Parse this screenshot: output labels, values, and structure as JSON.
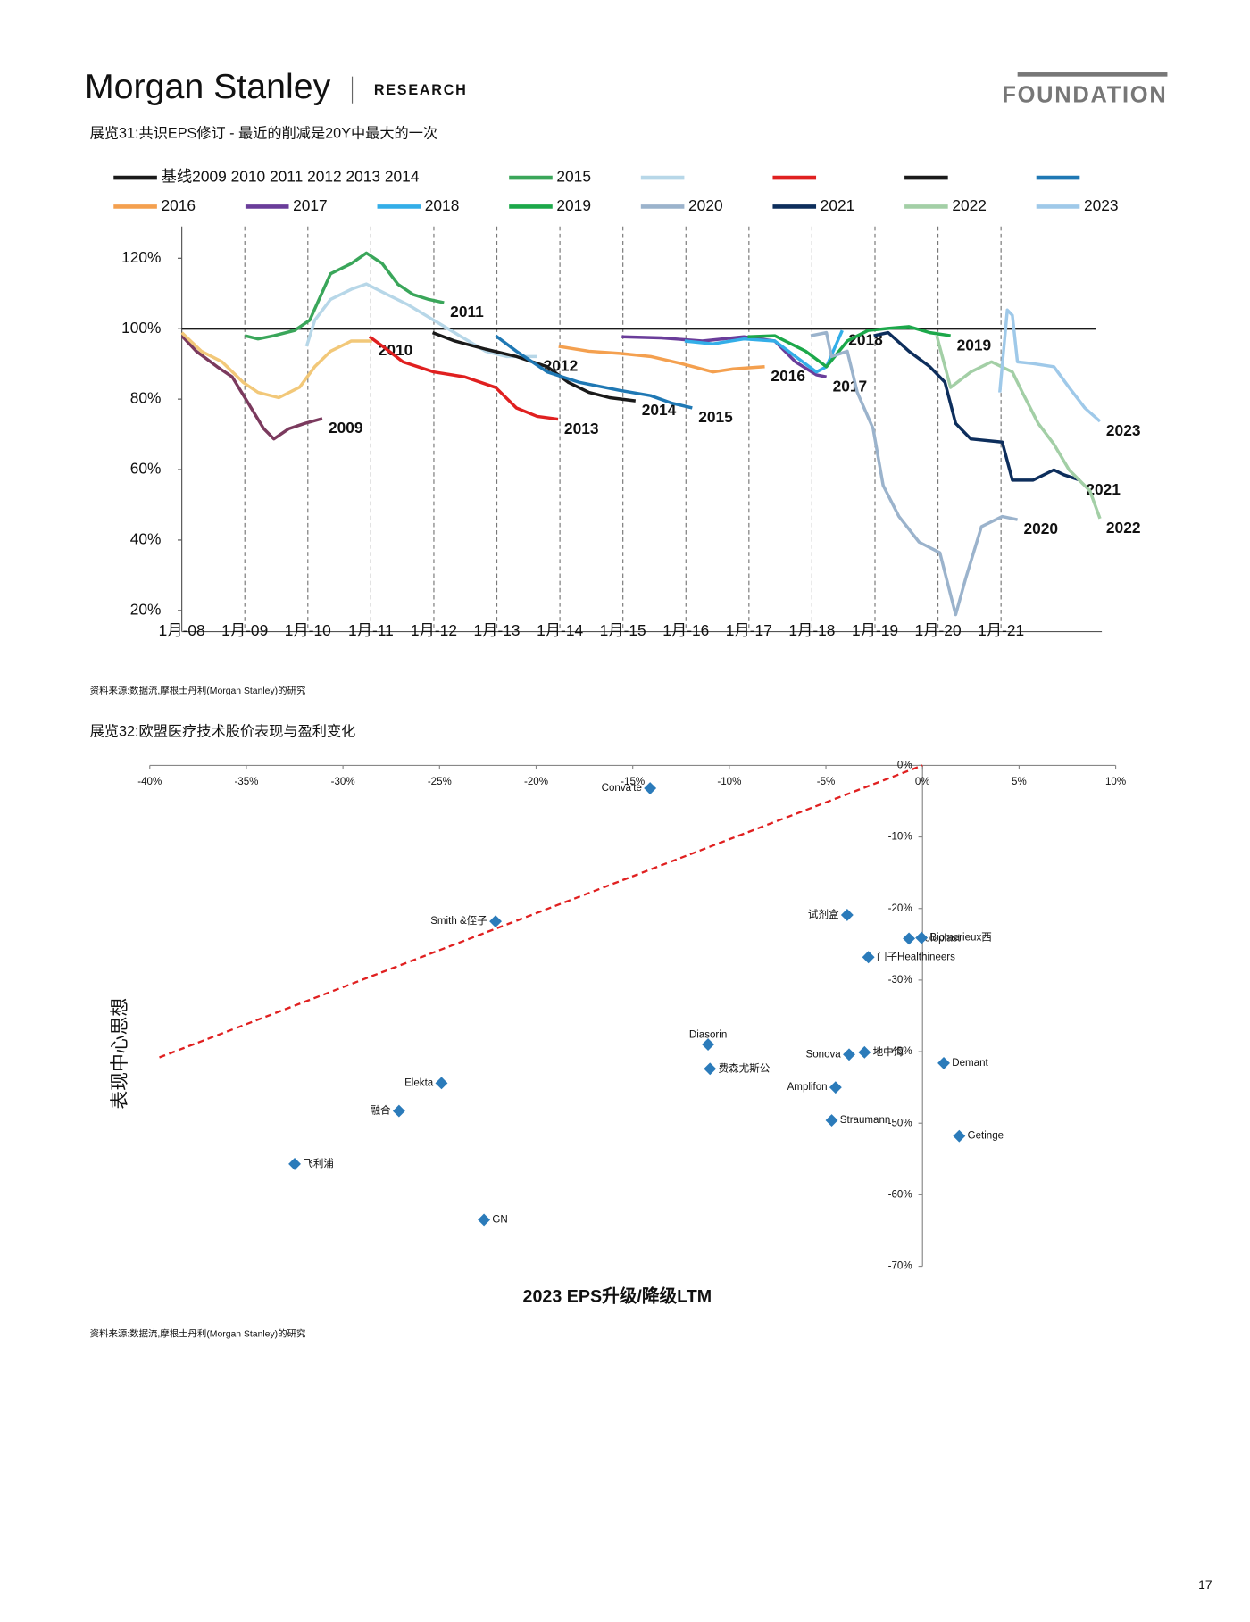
{
  "header": {
    "brand": "Morgan Stanley",
    "division": "RESEARCH",
    "series": "FOUNDATION"
  },
  "chart_data": [
    {
      "type": "line",
      "title": "展览31:共识EPS修订 - 最近的削减是20Y中最大的一次",
      "legend": [
        {
          "label": "基线2009 2010 2011 2012 2013 2014",
          "color": "#1a1a1a"
        },
        {
          "label": "2015",
          "color": "#3aa65a"
        },
        {
          "label": null,
          "color": "#b7d7e8"
        },
        {
          "label": null,
          "color": "#e02020"
        },
        {
          "label": null,
          "color": "#1a1a1a"
        },
        {
          "label": null,
          "color": "#1f78b4"
        },
        {
          "label": "2016",
          "color": "#f4a04f"
        },
        {
          "label": "2017",
          "color": "#6a3d9a"
        },
        {
          "label": "2018",
          "color": "#33aee8"
        },
        {
          "label": "2019",
          "color": "#1ca84a"
        },
        {
          "label": "2020",
          "color": "#9bb3cc"
        },
        {
          "label": "2021",
          "color": "#0d2e5c"
        },
        {
          "label": "2022",
          "color": "#a3cfa6"
        },
        {
          "label": "2023",
          "color": "#9fc9e9"
        }
      ],
      "xlim": [
        2008,
        2022.6
      ],
      "xticks": [
        {
          "value": 2008,
          "label": "1月-08"
        },
        {
          "value": 2009,
          "label": "1月-09"
        },
        {
          "value": 2010,
          "label": "1月-10"
        },
        {
          "value": 2011,
          "label": "1月-11"
        },
        {
          "value": 2012,
          "label": "1月-12"
        },
        {
          "value": 2013,
          "label": "1月-13"
        },
        {
          "value": 2014,
          "label": "1月-14"
        },
        {
          "value": 2015,
          "label": "1月-15"
        },
        {
          "value": 2016,
          "label": "1月-16"
        },
        {
          "value": 2017,
          "label": "1月-17"
        },
        {
          "value": 2018,
          "label": "1月-18"
        },
        {
          "value": 2019,
          "label": "1月-19"
        },
        {
          "value": 2020,
          "label": "1月-20"
        },
        {
          "value": 2021,
          "label": "1月-21"
        }
      ],
      "ylim": [
        14,
        129
      ],
      "yticks": [
        {
          "value": 20,
          "label": "20%"
        },
        {
          "value": 40,
          "label": "40%"
        },
        {
          "value": 60,
          "label": "60%"
        },
        {
          "value": 80,
          "label": "80%"
        },
        {
          "value": 100,
          "label": "100%"
        },
        {
          "value": 120,
          "label": "120%"
        }
      ],
      "baseline": {
        "color": "#1a1a1a",
        "x": [
          2008,
          2022.5
        ],
        "values": [
          100,
          100
        ]
      },
      "series": [
        {
          "name": "2009",
          "color": "#7b3a5e",
          "x": [
            2008,
            2008.23,
            2008.56,
            2008.8,
            2009.05,
            2009.3,
            2009.46,
            2009.7,
            2009.95,
            2010.23
          ],
          "values": [
            98,
            93.6,
            89.2,
            86.3,
            79,
            71.6,
            68.7,
            71.6,
            73.1,
            74.5
          ]
        },
        {
          "name": "2010",
          "color": "#f2c879",
          "x": [
            2008,
            2008.31,
            2008.64,
            2008.97,
            2009.21,
            2009.54,
            2009.87,
            2010.11,
            2010.36,
            2010.69,
            2011.02
          ],
          "values": [
            98.9,
            93.6,
            90.6,
            84.8,
            81.9,
            80.4,
            83.4,
            89.2,
            93.6,
            96.5,
            96.5
          ]
        },
        {
          "name": "2011",
          "color": "#3aa65a",
          "x": [
            2009,
            2009.21,
            2009.46,
            2009.79,
            2010.03,
            2010.36,
            2010.69,
            2010.93,
            2011.18,
            2011.43,
            2011.67,
            2011.92,
            2012.16
          ],
          "values": [
            98,
            97.1,
            98,
            99.5,
            102.4,
            115.6,
            118.5,
            121.5,
            118.5,
            112.6,
            109.7,
            108.3,
            107.4
          ]
        },
        {
          "name": "2012",
          "color": "#b7d7e8",
          "x": [
            2009.98,
            2010.11,
            2010.36,
            2010.69,
            2010.93,
            2011.26,
            2011.59,
            2012,
            2012.41,
            2012.82,
            2013.15,
            2013.64
          ],
          "values": [
            95,
            102.4,
            108.3,
            111.2,
            112.7,
            109.7,
            106.8,
            102.4,
            98,
            93.6,
            92.1,
            92.1
          ]
        },
        {
          "name": "2013",
          "color": "#e02020",
          "x": [
            2010.98,
            2011.18,
            2011.51,
            2012,
            2012.49,
            2012.98,
            2013.31,
            2013.64,
            2013.97
          ],
          "values": [
            97.7,
            95.1,
            90.6,
            87.7,
            86.3,
            83.3,
            77.5,
            75.1,
            74.3
          ]
        },
        {
          "name": "2014",
          "color": "#1a1a1a",
          "x": [
            2011.98,
            2012.33,
            2012.82,
            2013.31,
            2013.8,
            2014.13,
            2014.46,
            2014.79,
            2015.2
          ],
          "values": [
            98.9,
            96.5,
            94.2,
            92.1,
            89.2,
            84.8,
            81.9,
            80.4,
            79.5
          ]
        },
        {
          "name": "2015",
          "color": "#1f78b4",
          "x": [
            2012.98,
            2013.31,
            2013.8,
            2014.3,
            2014.95,
            2015.44,
            2015.77,
            2016.1
          ],
          "values": [
            98,
            93.6,
            87.7,
            84.8,
            82.5,
            81,
            78.9,
            77.5
          ]
        },
        {
          "name": "2016",
          "color": "#f4a04f",
          "x": [
            2013.98,
            2014.46,
            2014.95,
            2015.44,
            2015.93,
            2016.43,
            2016.75,
            2017.25
          ],
          "values": [
            95,
            93.6,
            93,
            92.1,
            90.1,
            87.7,
            88.6,
            89.2
          ]
        },
        {
          "name": "2017",
          "color": "#6a3d9a",
          "x": [
            2014.98,
            2015.61,
            2016.26,
            2016.92,
            2017.41,
            2017.74,
            2018.07,
            2018.23
          ],
          "values": [
            97.7,
            97.4,
            96.5,
            97.7,
            96.5,
            90.6,
            86.9,
            86.3
          ]
        },
        {
          "name": "2018",
          "color": "#33aee8",
          "x": [
            2015.98,
            2016.43,
            2016.92,
            2017.41,
            2017.74,
            2018.07,
            2018.23,
            2018.48
          ],
          "values": [
            96.5,
            95.7,
            97.1,
            96.5,
            92.1,
            87.7,
            89.2,
            99.5
          ]
        },
        {
          "name": "2019",
          "color": "#1ca84a",
          "x": [
            2016.98,
            2017.41,
            2017.9,
            2018.23,
            2018.56,
            2018.89,
            2019.21,
            2019.54,
            2019.87,
            2020.2
          ],
          "values": [
            97.7,
            98,
            93.6,
            89.2,
            96.5,
            99.5,
            100.1,
            100.6,
            98.9,
            98
          ]
        },
        {
          "name": "2020",
          "color": "#9bb3cc",
          "x": [
            2017.98,
            2018.23,
            2018.31,
            2018.56,
            2018.72,
            2018.97,
            2019.13,
            2019.38,
            2019.7,
            2020.03,
            2020.28,
            2020.44,
            2020.69,
            2021.02,
            2021.26
          ],
          "values": [
            98,
            98.9,
            92.1,
            93.6,
            81.9,
            71.6,
            55.5,
            46.7,
            39.4,
            36.4,
            18.8,
            29.1,
            43.8,
            46.7,
            45.8
          ]
        },
        {
          "name": "2021",
          "color": "#0d2e5c",
          "x": [
            2018.98,
            2019.21,
            2019.54,
            2019.87,
            2020.11,
            2020.28,
            2020.52,
            2021.02,
            2021.18,
            2021.51,
            2021.84,
            2022,
            2022.25
          ],
          "values": [
            98,
            98.9,
            93.6,
            89.2,
            84.8,
            73.1,
            68.7,
            67.8,
            57,
            57,
            59.9,
            58.5,
            57
          ]
        },
        {
          "name": "2022",
          "color": "#a3cfa6",
          "x": [
            2019.98,
            2020.2,
            2020.52,
            2020.85,
            2021.18,
            2021.34,
            2021.59,
            2021.84,
            2022.08,
            2022.41,
            2022.57
          ],
          "values": [
            98,
            83.3,
            87.7,
            90.6,
            87.7,
            81.9,
            73.1,
            67.2,
            59.9,
            54,
            46.1
          ]
        },
        {
          "name": "2023",
          "color": "#9fc9e9",
          "x": [
            2020.98,
            2021.1,
            2021.18,
            2021.26,
            2021.51,
            2021.84,
            2022.08,
            2022.33,
            2022.57
          ],
          "values": [
            81.9,
            105.3,
            103.8,
            90.6,
            90.1,
            89.2,
            83.3,
            77.5,
            73.7
          ]
        }
      ],
      "source": "资料来源:数据流,摩根士丹利(Morgan Stanley)的研究"
    },
    {
      "type": "scatter",
      "title": "展览32:欧盟医疗技术股价表现与盈利变化",
      "x_label": "2023 EPS升级/降级LTM",
      "y_label": "表现中心思想",
      "xlim": [
        -40,
        10
      ],
      "xticks": [
        {
          "value": -40,
          "label": "-40%"
        },
        {
          "value": -35,
          "label": "-35%"
        },
        {
          "value": -30,
          "label": "-30%"
        },
        {
          "value": -25,
          "label": "-25%"
        },
        {
          "value": -20,
          "label": "-20%"
        },
        {
          "value": -15,
          "label": "-15%"
        },
        {
          "value": -10,
          "label": "-10%"
        },
        {
          "value": -5,
          "label": "-5%"
        },
        {
          "value": 0,
          "label": "0%"
        },
        {
          "value": 5,
          "label": "5%"
        },
        {
          "value": 10,
          "label": "10%"
        }
      ],
      "ylim": [
        -70,
        0
      ],
      "yticks": [
        {
          "value": 0,
          "label": "0%"
        },
        {
          "value": -10,
          "label": "-10%"
        },
        {
          "value": -20,
          "label": "-20%"
        },
        {
          "value": -30,
          "label": "-30%"
        },
        {
          "value": -40,
          "label": "-40%"
        },
        {
          "value": -50,
          "label": "-50%"
        },
        {
          "value": -60,
          "label": "-60%"
        },
        {
          "value": -70,
          "label": "-70%"
        }
      ],
      "series": [
        {
          "color": "#2b7bba",
          "labels": [
            "Conva'te",
            "Smith &侄子",
            "试剂盒",
            "Coloplast",
            "Biomerieux西",
            "门子Healthineers",
            "Diasorin",
            "Sonova",
            "地中海",
            "Demant",
            "费森尤斯公",
            "Elekta",
            "Amplifon",
            "融合",
            "Straumann",
            "Getinge",
            "飞利浦",
            "GN"
          ],
          "x": [
            -14.1,
            -22.1,
            -3.9,
            -0.7,
            -0.05,
            -2.8,
            -11.1,
            -3.8,
            -3.0,
            1.1,
            -11.0,
            -24.9,
            -4.5,
            -27.1,
            -4.7,
            1.9,
            -32.5,
            -22.7
          ],
          "values": [
            -3.2,
            -21.8,
            -20.9,
            -24.2,
            -24.1,
            -26.8,
            -39.0,
            -40.4,
            -40.1,
            -41.6,
            -42.4,
            -44.4,
            -45.0,
            -48.3,
            -49.6,
            -51.8,
            -55.7,
            -63.5
          ]
        }
      ],
      "trend": {
        "color": "#e02020",
        "x": [
          -39.5,
          0
        ],
        "values": [
          -40.8,
          0
        ]
      },
      "source": "资料来源:数据流,摩根士丹利(Morgan Stanley)的研究"
    }
  ],
  "page_number": "17"
}
